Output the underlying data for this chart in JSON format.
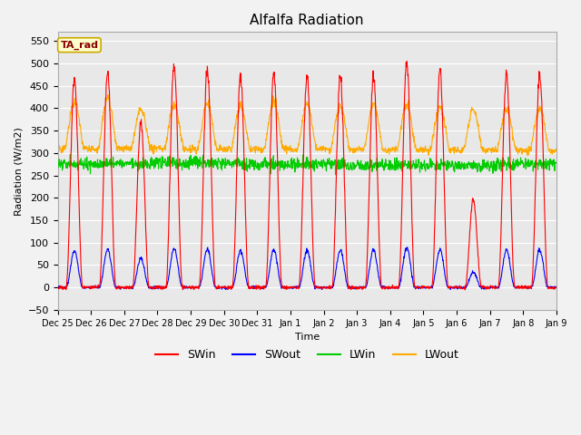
{
  "title": "Alfalfa Radiation",
  "xlabel": "Time",
  "ylabel": "Radiation (W/m2)",
  "ylim": [
    -50,
    570
  ],
  "yticks": [
    -50,
    0,
    50,
    100,
    150,
    200,
    250,
    300,
    350,
    400,
    450,
    500,
    550
  ],
  "fig_bg_color": "#f2f2f2",
  "plot_bg_color": "#e8e8e8",
  "grid_color": "#ffffff",
  "legend_colors": [
    "#ff0000",
    "#0000ff",
    "#00cc00",
    "#ffaa00"
  ],
  "annotation_text": "TA_rad",
  "annotation_bg": "#ffffcc",
  "annotation_border": "#ccaa00",
  "annotation_text_color": "#880000",
  "n_days": 15,
  "dt_hours": 0.25,
  "xtick_labels": [
    "Dec 25",
    "Dec 26",
    "Dec 27",
    "Dec 28",
    "Dec 29",
    "Dec 30",
    "Dec 31",
    "Jan 1",
    "Jan 2",
    "Jan 3",
    "Jan 4",
    "Jan 5",
    "Jan 6",
    "Jan 7",
    "Jan 8",
    "Jan 9"
  ],
  "line_width": 0.8
}
